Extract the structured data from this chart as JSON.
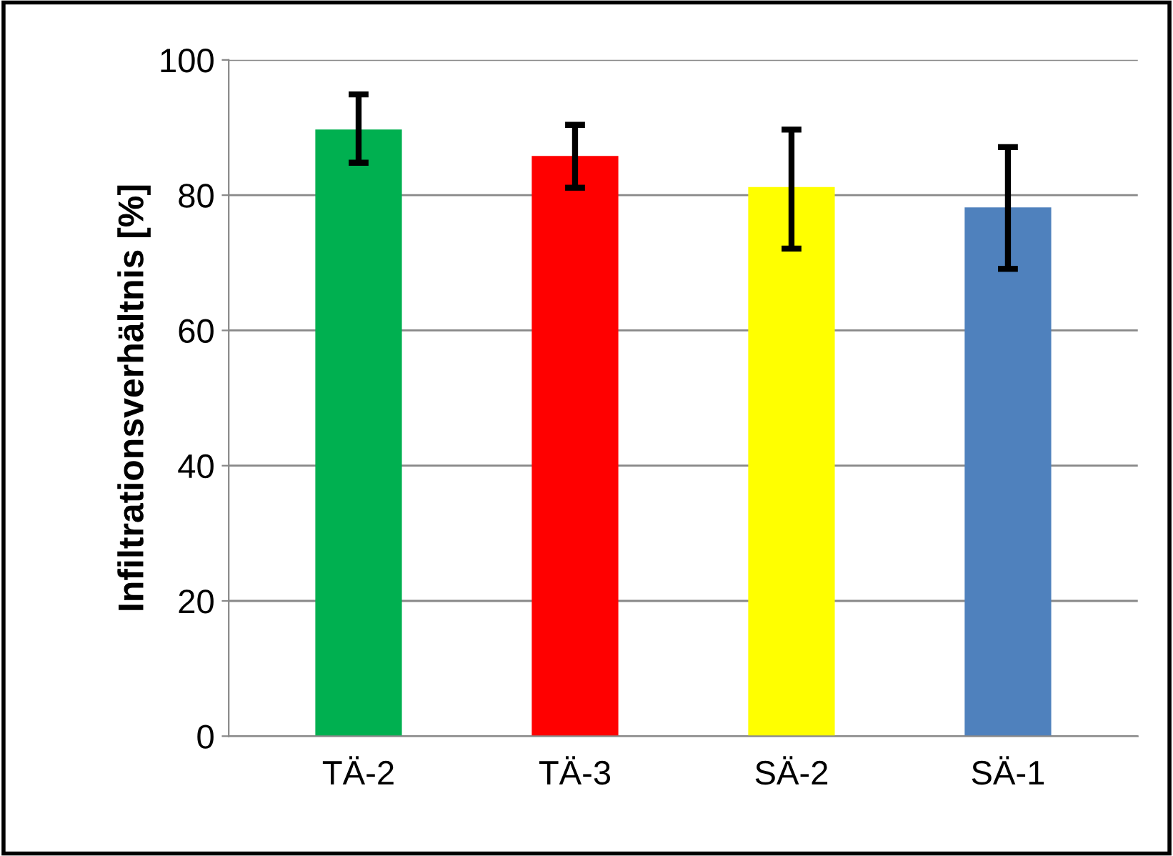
{
  "chart_data": {
    "type": "bar",
    "ylabel": "Infiltrationsverhältnis [%]",
    "categories": [
      "TÄ-2",
      "TÄ-3",
      "SÄ-2",
      "SÄ-1"
    ],
    "values": [
      89.7,
      85.8,
      81.2,
      78.2
    ],
    "colors": [
      "#00b050",
      "#ff0000",
      "#ffff00",
      "#4f81bd"
    ],
    "errors": [
      [
        84.8,
        94.9
      ],
      [
        81.1,
        90.4
      ],
      [
        72.1,
        89.7
      ],
      [
        69.1,
        87.1
      ]
    ],
    "ylim": [
      0,
      100
    ],
    "yticks": [
      0,
      20,
      40,
      60,
      80,
      100
    ],
    "grid": "y"
  }
}
